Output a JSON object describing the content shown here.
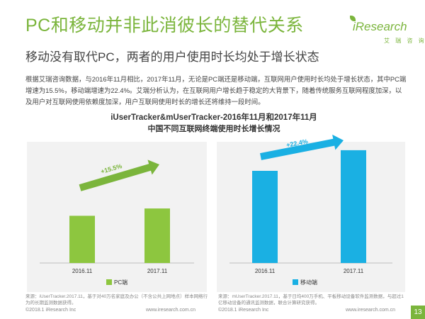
{
  "header": {
    "title": "PC和移动并非此消彼长的替代关系",
    "subtitle": "移动没有取代PC，两者的用户使用时长均处于增长状态",
    "logo_text": "iResearch",
    "logo_sub": "艾 瑞 咨 询"
  },
  "summary": "根据艾瑞咨询数据，与2016年11月相比，2017年11月，无论是PC端还是移动端，互联网用户使用时长均处于增长状态，其中PC端增速为15.5%，移动端增速为22.4%。艾瑞分析认为，在互联网用户增长趋于稳定的大背景下，随着传统服务互联网程度加深，以及用户对互联网使用依赖度加深，用户互联网使用时长的增长还将维持一段时间。",
  "chart_data": {
    "type": "bar",
    "title": "iUserTracker&mUserTracker-2016年11月和2017年11月",
    "subtitle": "中国不同互联网终端使用时长增长情况",
    "charts": [
      {
        "categories": [
          "2016.11",
          "2017.11"
        ],
        "series": [
          {
            "name": "PC端",
            "values": [
              100,
              115.5
            ]
          }
        ],
        "growth_label": "+15.5%"
      },
      {
        "categories": [
          "2016.11",
          "2017.11"
        ],
        "series": [
          {
            "name": "移动端",
            "values": [
              100,
              122.4
            ]
          }
        ],
        "growth_label": "+22.4%"
      }
    ]
  },
  "colors": {
    "brand": "#7bb53c",
    "pc_bar": "#8dc63f",
    "mobile_bar": "#1ab0e3",
    "pc_arrow": "#7bb53c",
    "mobile_arrow": "#1ab0e3",
    "panel_bg": "#f2f2f2"
  },
  "footer": {
    "left_source": "来源：iUserTracker.2017.11，基于对40万名家庭及办公（不含公共上网地点）样本网络行为的长期监测数据获得。",
    "right_source": "来源：mUserTracker.2017.11，基于日均400万手机、平板移动设备软件监测数据，与超过1亿移动设备的通讯监测数据，联合计算研究获得。",
    "copyright_left": "©2018.1 iResearch Inc",
    "site_left": "www.iresearch.com.cn",
    "copyright_right": "©2018.1 iResearch Inc",
    "site_right": "www.iresearch.com.cn",
    "page_number": "13"
  }
}
